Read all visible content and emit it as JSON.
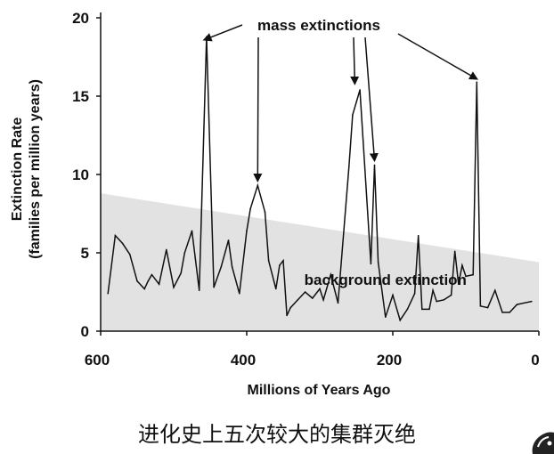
{
  "chart_data": {
    "type": "line",
    "xlabel": "Millions of Years Ago",
    "ylabel_line1": "Extinction Rate",
    "ylabel_line2": "(families per million years)",
    "xlim": [
      600,
      0
    ],
    "ylim": [
      0,
      20
    ],
    "x_ticks": [
      "600",
      "400",
      "200",
      "0"
    ],
    "y_ticks": [
      "0",
      "5",
      "10",
      "15",
      "20"
    ],
    "series": [
      {
        "x": [
          590,
          580,
          570,
          560,
          550,
          540,
          535,
          530,
          520,
          510,
          500,
          490,
          485,
          475,
          465,
          455,
          445,
          435,
          425,
          420,
          410,
          400,
          395,
          385,
          375,
          370,
          360,
          355,
          350,
          345,
          340,
          330,
          320,
          310,
          300,
          295,
          285,
          275,
          260,
          255,
          245,
          230,
          225,
          220,
          210,
          200,
          190,
          180,
          170,
          165,
          160,
          150,
          145,
          140,
          130,
          120,
          115,
          110,
          105,
          100,
          90,
          85,
          80,
          70,
          60,
          50,
          40,
          30,
          20,
          10
        ],
        "y": [
          2.4,
          6.1,
          5.6,
          4.9,
          3.2,
          2.7,
          3.2,
          3.6,
          3.0,
          5.2,
          2.8,
          3.7,
          5.0,
          6.4,
          2.6,
          18.8,
          2.8,
          4.1,
          5.8,
          4.1,
          2.4,
          6.4,
          7.8,
          9.3,
          7.6,
          4.5,
          2.7,
          4.2,
          4.5,
          1.0,
          1.5,
          2.0,
          2.5,
          2.1,
          2.7,
          2.0,
          3.6,
          1.8,
          10.5,
          13.8,
          15.4,
          4.3,
          10.6,
          4.4,
          0.9,
          2.3,
          0.7,
          1.4,
          2.4,
          6.1,
          1.4,
          1.4,
          2.6,
          1.9,
          2.0,
          2.3,
          5.1,
          3.0,
          4.2,
          3.5,
          3.6,
          15.9,
          1.6,
          1.5,
          2.6,
          1.2,
          1.2,
          1.7,
          1.8,
          1.9
        ]
      }
    ],
    "background_band": {
      "x": [
        600,
        0
      ],
      "upper": [
        8.8,
        4.4
      ],
      "lower": [
        0,
        0
      ]
    },
    "annotations": [
      {
        "text": "mass extinctions",
        "arrow_targets": [
          {
            "x": 458,
            "y": 18.6
          },
          {
            "x": 385,
            "y": 9.6
          },
          {
            "x": 252,
            "y": 15.8
          },
          {
            "x": 225,
            "y": 10.9
          },
          {
            "x": 85,
            "y": 16.1
          }
        ]
      },
      {
        "text": "background extinction",
        "x": 310,
        "y": 3.3
      }
    ],
    "grid": false,
    "legend": "none"
  },
  "caption": "进化史上五次较大的集群灭绝"
}
